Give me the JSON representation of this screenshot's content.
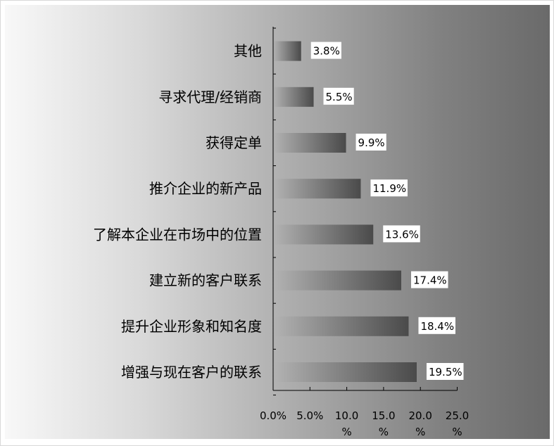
{
  "chart_data": {
    "type": "bar",
    "orientation": "horizontal",
    "categories": [
      "其他",
      "寻求代理/经销商",
      "获得定单",
      "推介企业的新产品",
      "了解本企业在市场中的位置",
      "建立新的客户联系",
      "提升企业形象和知名度",
      "增强与现在客户的联系"
    ],
    "values": [
      3.8,
      5.5,
      9.9,
      11.9,
      13.6,
      17.4,
      18.4,
      19.5
    ],
    "value_labels": [
      "3.8%",
      "5.5%",
      "9.9%",
      "11.9%",
      "13.6%",
      "17.4%",
      "18.4%",
      "19.5%"
    ],
    "xlim": [
      0,
      25
    ],
    "x_ticks": [
      0,
      5,
      10,
      15,
      20,
      25
    ],
    "x_tick_labels": [
      [
        "0.0%"
      ],
      [
        "5.0%"
      ],
      [
        "10.0",
        "%"
      ],
      [
        "15.0",
        "%"
      ],
      [
        "20.0",
        "%"
      ],
      [
        "25.0",
        "%"
      ]
    ],
    "grid": false,
    "legend": "none",
    "colors": {
      "bar_light": "#b3b3b3",
      "bar_dark": "#4a4a4a",
      "axis": "#000000",
      "label_box": "#ffffff"
    }
  }
}
